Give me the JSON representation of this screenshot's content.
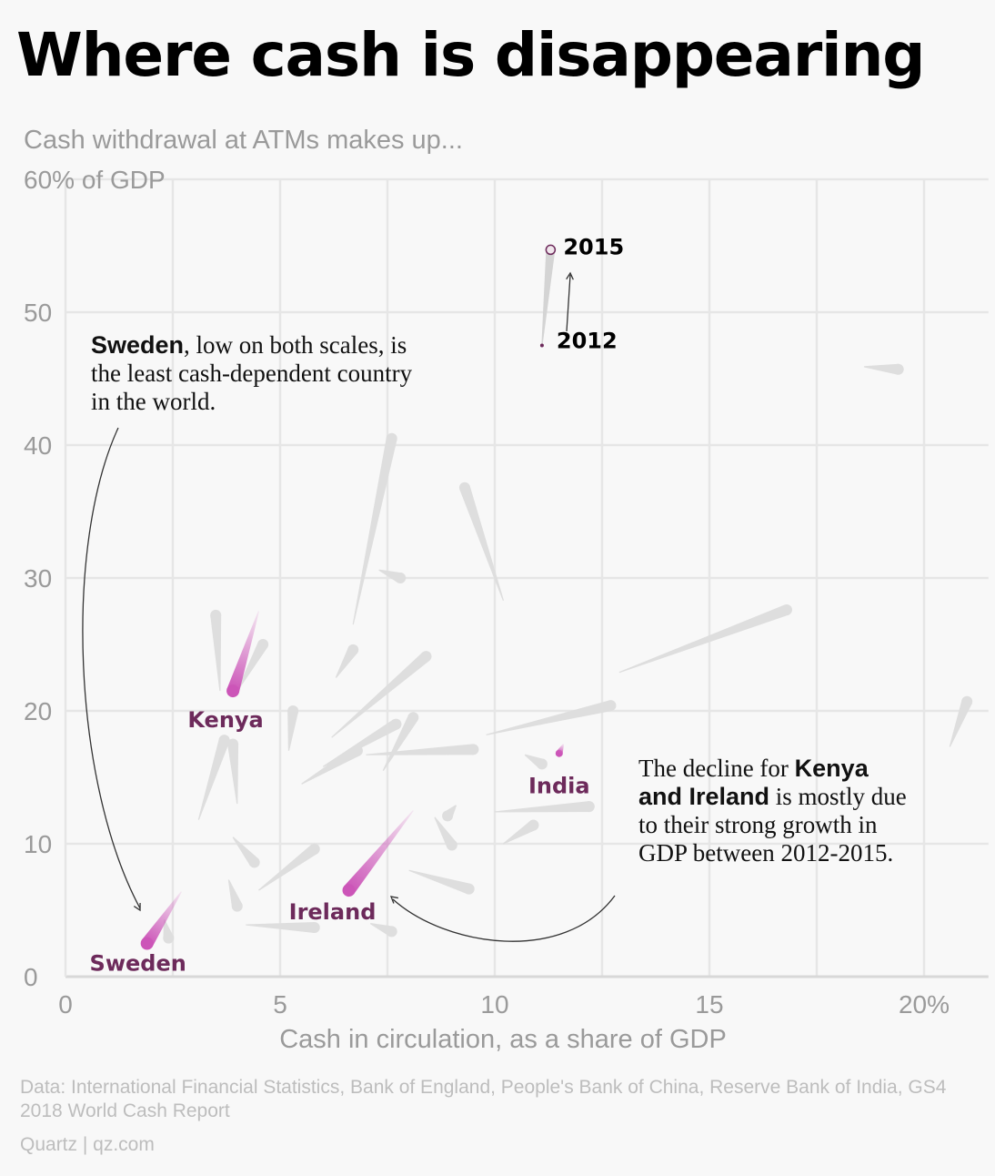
{
  "title": "Where cash is disappearing",
  "subtitle": "Cash withdrawal at ATMs makes up...",
  "source": "Data: International Financial Statistics, Bank of England, People's Bank of China, Reserve Bank of India, GS4 2018 World Cash Report",
  "credit": "Quartz | qz.com",
  "annotations": {
    "sweden": {
      "bold": "Sweden",
      "text": ", low on both scales, is the least cash-dependent country in the world."
    },
    "decline": {
      "pre": "The decline for ",
      "bold": "Kenya and Ireland",
      "post": " is mostly due to their strong growth in GDP between 2012-2015."
    },
    "year_start": "2012",
    "year_end": "2015"
  },
  "colors": {
    "highlight": "#cc55b8",
    "label": "#6d2a5b",
    "other": "#dedede",
    "grid": "#e6e6e6"
  },
  "chart_data": {
    "type": "scatter",
    "xlabel": "Cash in circulation, as a share of GDP",
    "ylabel": "",
    "xlim": [
      0,
      21.5
    ],
    "ylim": [
      0,
      60
    ],
    "x_ticks": [
      {
        "value": 0,
        "label": "0"
      },
      {
        "value": 5,
        "label": "5"
      },
      {
        "value": 10,
        "label": "10"
      },
      {
        "value": 15,
        "label": "15"
      },
      {
        "value": 20,
        "label": "20%"
      }
    ],
    "y_ticks": [
      {
        "value": 0,
        "label": "0"
      },
      {
        "value": 10,
        "label": "10"
      },
      {
        "value": 20,
        "label": "20"
      },
      {
        "value": 30,
        "label": "30"
      },
      {
        "value": 40,
        "label": "40"
      },
      {
        "value": 50,
        "label": "50"
      },
      {
        "value": 60,
        "label": "60% of GDP"
      }
    ],
    "grid": true,
    "highlighted": [
      {
        "name": "Sweden",
        "x2012": 2.7,
        "y2012": 6.4,
        "x2015": 1.9,
        "y2015": 2.5
      },
      {
        "name": "Kenya",
        "x2012": 4.5,
        "y2012": 27.5,
        "x2015": 3.9,
        "y2015": 21.5
      },
      {
        "name": "Ireland",
        "x2012": 8.1,
        "y2012": 12.5,
        "x2015": 6.6,
        "y2015": 6.5
      },
      {
        "name": "India",
        "x2012": 11.6,
        "y2012": 17.5,
        "x2015": 11.5,
        "y2015": 16.8
      }
    ],
    "example": {
      "x2012": 11.1,
      "y2012": 47.5,
      "x2015": 11.3,
      "y2015": 54.7
    },
    "others": [
      {
        "x2012": 18.6,
        "y2012": 45.9,
        "x2015": 19.4,
        "y2015": 45.7
      },
      {
        "x2012": 6.7,
        "y2012": 26.5,
        "x2015": 7.6,
        "y2015": 40.5
      },
      {
        "x2012": 10.2,
        "y2012": 28.3,
        "x2015": 9.3,
        "y2015": 36.8
      },
      {
        "x2012": 7.3,
        "y2012": 30.6,
        "x2015": 7.8,
        "y2015": 30.0
      },
      {
        "x2012": 3.6,
        "y2012": 21.5,
        "x2015": 3.5,
        "y2015": 27.2
      },
      {
        "x2012": 4.0,
        "y2012": 21.5,
        "x2015": 4.6,
        "y2015": 25.0
      },
      {
        "x2012": 12.9,
        "y2012": 22.9,
        "x2015": 16.8,
        "y2015": 27.6
      },
      {
        "x2012": 6.3,
        "y2012": 22.5,
        "x2015": 6.7,
        "y2015": 24.6
      },
      {
        "x2012": 6.2,
        "y2012": 18.0,
        "x2015": 8.4,
        "y2015": 24.1
      },
      {
        "x2012": 6.0,
        "y2012": 15.8,
        "x2015": 7.7,
        "y2015": 19.0
      },
      {
        "x2012": 5.2,
        "y2012": 17.0,
        "x2015": 5.3,
        "y2015": 20.0
      },
      {
        "x2012": 9.8,
        "y2012": 18.2,
        "x2015": 12.7,
        "y2015": 20.4
      },
      {
        "x2012": 20.6,
        "y2012": 17.3,
        "x2015": 21.0,
        "y2015": 20.7
      },
      {
        "x2012": 3.1,
        "y2012": 11.8,
        "x2015": 3.7,
        "y2015": 17.8
      },
      {
        "x2012": 4.0,
        "y2012": 13.0,
        "x2015": 3.9,
        "y2015": 17.5
      },
      {
        "x2012": 7.4,
        "y2012": 15.5,
        "x2015": 8.1,
        "y2015": 19.5
      },
      {
        "x2012": 5.5,
        "y2012": 14.5,
        "x2015": 6.8,
        "y2015": 17.0
      },
      {
        "x2012": 7.0,
        "y2012": 16.7,
        "x2015": 9.5,
        "y2015": 17.1
      },
      {
        "x2012": 10.7,
        "y2012": 16.7,
        "x2015": 11.1,
        "y2015": 16.0
      },
      {
        "x2012": 10.2,
        "y2012": 10.0,
        "x2015": 10.9,
        "y2015": 11.4
      },
      {
        "x2012": 10.0,
        "y2012": 12.4,
        "x2015": 12.2,
        "y2015": 12.8
      },
      {
        "x2012": 8.6,
        "y2012": 12.0,
        "x2015": 9.0,
        "y2015": 9.9
      },
      {
        "x2012": 9.1,
        "y2012": 12.9,
        "x2015": 8.9,
        "y2015": 12.1
      },
      {
        "x2012": 3.9,
        "y2012": 10.5,
        "x2015": 4.4,
        "y2015": 8.6
      },
      {
        "x2012": 4.5,
        "y2012": 6.5,
        "x2015": 5.8,
        "y2015": 9.6
      },
      {
        "x2012": 8.0,
        "y2012": 8.0,
        "x2015": 9.4,
        "y2015": 6.6
      },
      {
        "x2012": 3.8,
        "y2012": 7.3,
        "x2015": 4.0,
        "y2015": 5.3
      },
      {
        "x2012": 4.2,
        "y2012": 3.9,
        "x2015": 5.8,
        "y2015": 3.7
      },
      {
        "x2012": 7.1,
        "y2012": 4.0,
        "x2015": 7.6,
        "y2015": 3.4
      },
      {
        "x2012": 2.3,
        "y2012": 4.3,
        "x2015": 2.4,
        "y2015": 2.9
      }
    ]
  }
}
